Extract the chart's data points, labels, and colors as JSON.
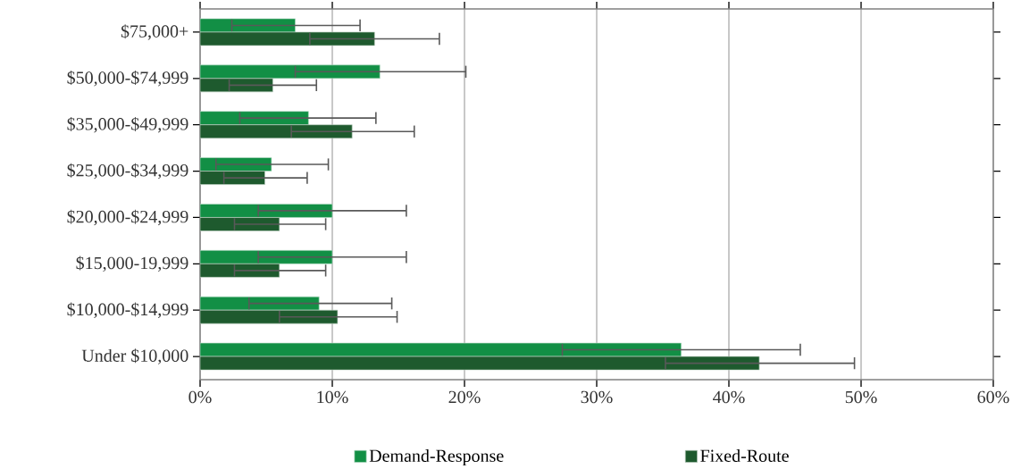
{
  "chart_data": {
    "type": "bar",
    "orientation": "horizontal",
    "categories": [
      "$75,000+",
      "$50,000-$74,999",
      "$35,000-$49,999",
      "$25,000-$34,999",
      "$20,000-$24,999",
      "$15,000-19,999",
      "$10,000-$14,999",
      "Under $10,000"
    ],
    "series": [
      {
        "name": "Demand-Response",
        "color": "#128f45",
        "values": [
          7.2,
          13.6,
          8.2,
          5.4,
          10.0,
          10.0,
          9.0,
          36.4
        ],
        "errors": [
          [
            2.4,
            12.1
          ],
          [
            7.2,
            20.1
          ],
          [
            3.0,
            13.3
          ],
          [
            1.2,
            9.7
          ],
          [
            4.4,
            15.6
          ],
          [
            4.4,
            15.6
          ],
          [
            3.7,
            14.5
          ],
          [
            27.4,
            45.4
          ]
        ]
      },
      {
        "name": "Fixed-Route",
        "color": "#1e5a2e",
        "values": [
          13.2,
          5.5,
          11.5,
          4.9,
          6.0,
          6.0,
          10.4,
          42.3
        ],
        "errors": [
          [
            8.3,
            18.1
          ],
          [
            2.2,
            8.8
          ],
          [
            6.9,
            16.2
          ],
          [
            1.8,
            8.1
          ],
          [
            2.6,
            9.5
          ],
          [
            2.6,
            9.5
          ],
          [
            6.0,
            14.9
          ],
          [
            35.2,
            49.5
          ]
        ]
      }
    ],
    "xlim": [
      0,
      60
    ],
    "xticks": [
      {
        "value": 0,
        "label": "0%"
      },
      {
        "value": 10,
        "label": "10%"
      },
      {
        "value": 20,
        "label": "20%"
      },
      {
        "value": 30,
        "label": "30%"
      },
      {
        "value": 40,
        "label": "40%"
      },
      {
        "value": 50,
        "label": "50%"
      },
      {
        "value": 60,
        "label": "60%"
      }
    ],
    "grid": "x",
    "legend": "bottom"
  }
}
